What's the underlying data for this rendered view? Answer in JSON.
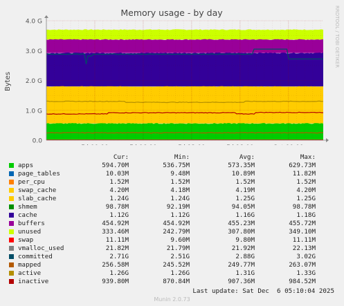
{
  "chart_data": {
    "type": "area",
    "title": "Memory usage - by day",
    "ylabel": "Bytes",
    "side_label": "RRDTOOL / TOBI OETIKER",
    "y_ticks": [
      "0.0",
      "1.0 G",
      "2.0 G",
      "3.0 G",
      "4.0 G"
    ],
    "ylim": [
      0,
      4.0
    ],
    "y_unit": "G",
    "x_ticks": [
      {
        "label": "Fri 00:00",
        "t": 6
      },
      {
        "label": "Fri 06:00",
        "t": 12
      },
      {
        "label": "Fri 12:00",
        "t": 18
      },
      {
        "label": "Fri 18:00",
        "t": 24
      },
      {
        "label": "Sat 00:00",
        "t": 30
      }
    ],
    "xlim": [
      0,
      34.3
    ],
    "grid": true,
    "approx_series_G": {
      "apps": 0.56,
      "slab_cache": 1.24,
      "cache": 1.12,
      "buffers": 0.45,
      "unused": 0.33
    },
    "lines_G": {
      "inactive": 0.88,
      "active": 1.3,
      "committed": 2.88,
      "mapped": 0.25
    }
  },
  "legend": {
    "headers": {
      "cur": "Cur:",
      "min": "Min:",
      "avg": "Avg:",
      "max": "Max:"
    },
    "rows": [
      {
        "name": "apps",
        "color": "#00cc00",
        "cur": "594.70M",
        "min": "536.75M",
        "avg": "573.35M",
        "max": "629.73M"
      },
      {
        "name": "page_tables",
        "color": "#0066b3",
        "cur": "10.03M",
        "min": "9.48M",
        "avg": "10.89M",
        "max": "11.82M"
      },
      {
        "name": "per_cpu",
        "color": "#ff8000",
        "cur": "1.52M",
        "min": "1.52M",
        "avg": "1.52M",
        "max": "1.52M"
      },
      {
        "name": "swap_cache",
        "color": "#ffcc00",
        "cur": "4.20M",
        "min": "4.18M",
        "avg": "4.19M",
        "max": "4.20M"
      },
      {
        "name": "slab_cache",
        "color": "#ffcc00",
        "cur": "1.24G",
        "min": "1.24G",
        "avg": "1.25G",
        "max": "1.25G"
      },
      {
        "name": "shmem",
        "color": "#008f00",
        "cur": "98.78M",
        "min": "92.19M",
        "avg": "94.05M",
        "max": "98.78M"
      },
      {
        "name": "cache",
        "color": "#330099",
        "cur": "1.12G",
        "min": "1.12G",
        "avg": "1.16G",
        "max": "1.18G"
      },
      {
        "name": "buffers",
        "color": "#990099",
        "cur": "454.92M",
        "min": "454.92M",
        "avg": "455.23M",
        "max": "455.72M"
      },
      {
        "name": "unused",
        "color": "#ccff00",
        "cur": "333.46M",
        "min": "242.79M",
        "avg": "307.80M",
        "max": "349.10M"
      },
      {
        "name": "swap",
        "color": "#ff0000",
        "cur": "11.11M",
        "min": "9.60M",
        "avg": "9.80M",
        "max": "11.11M"
      },
      {
        "name": "vmalloc_used",
        "color": "#808080",
        "cur": "21.82M",
        "min": "21.79M",
        "avg": "21.92M",
        "max": "22.13M"
      },
      {
        "name": "committed",
        "color": "#004d66",
        "cur": "2.71G",
        "min": "2.51G",
        "avg": "2.88G",
        "max": "3.02G"
      },
      {
        "name": "mapped",
        "color": "#b35a00",
        "cur": "256.58M",
        "min": "245.52M",
        "avg": "249.77M",
        "max": "263.07M"
      },
      {
        "name": "active",
        "color": "#b38f00",
        "cur": "1.26G",
        "min": "1.26G",
        "avg": "1.31G",
        "max": "1.33G"
      },
      {
        "name": "inactive",
        "color": "#b30000",
        "cur": "939.80M",
        "min": "870.84M",
        "avg": "907.36M",
        "max": "984.52M"
      }
    ]
  },
  "footer": {
    "last_update": "Last update: Sat Dec  6 05:10:04 2025",
    "munin_version": "Munin 2.0.73"
  }
}
